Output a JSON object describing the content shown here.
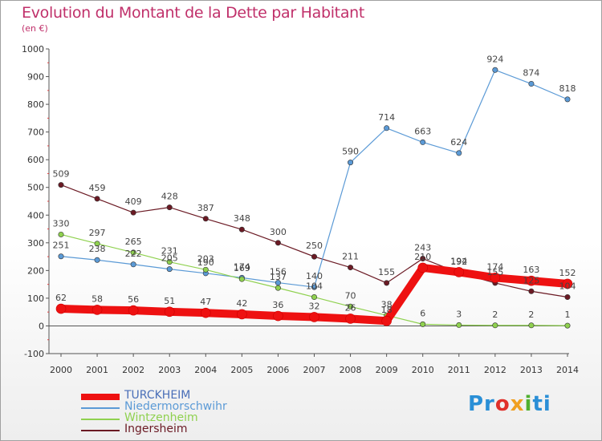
{
  "title": "Evolution du Montant de la Dette par Habitant",
  "unit": "(en €)",
  "logo": [
    "Pr",
    "o",
    "x",
    "i",
    "ti"
  ],
  "chart_data": {
    "type": "line",
    "x": [
      "2000",
      "2001",
      "2002",
      "2003",
      "2004",
      "2005",
      "2006",
      "2007",
      "2008",
      "2009",
      "2010",
      "2011",
      "2012",
      "2013",
      "2014"
    ],
    "ylim": [
      -100,
      1000
    ],
    "yticks": [
      "-100",
      "0",
      "100",
      "200",
      "300",
      "400",
      "500",
      "600",
      "700",
      "800",
      "900",
      "1000"
    ],
    "ytick_values": [
      -100,
      0,
      100,
      200,
      300,
      400,
      500,
      600,
      700,
      800,
      900,
      1000
    ],
    "grid": false,
    "legend_position": "bottom-left",
    "series": [
      {
        "name": "TURCKHEIM",
        "color": "#ee1111",
        "width": 10,
        "values": [
          62,
          58,
          56,
          51,
          47,
          42,
          36,
          32,
          26,
          18,
          210,
          194,
          174,
          163,
          152
        ]
      },
      {
        "name": "Niedermorschwihr",
        "color": "#5b9ad6",
        "width": 1.2,
        "values": [
          251,
          238,
          222,
          205,
          190,
          174,
          156,
          140,
          590,
          714,
          663,
          624,
          924,
          874,
          818
        ]
      },
      {
        "name": "Wintzenheim",
        "color": "#8fd14f",
        "width": 1.2,
        "values": [
          330,
          297,
          265,
          231,
          203,
          169,
          137,
          104,
          70,
          38,
          6,
          3,
          2,
          2,
          1
        ]
      },
      {
        "name": "Ingersheim",
        "color": "#6b1a24",
        "width": 1.2,
        "values": [
          509,
          459,
          409,
          428,
          387,
          348,
          300,
          250,
          211,
          155,
          243,
          192,
          155,
          125,
          104
        ]
      }
    ]
  }
}
